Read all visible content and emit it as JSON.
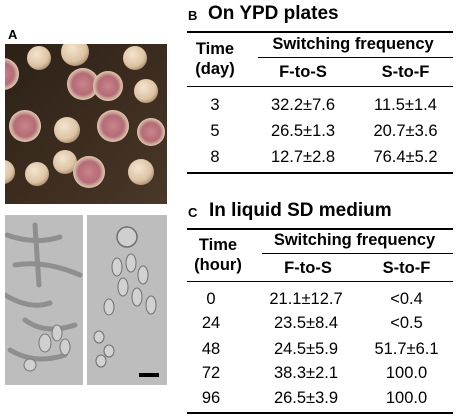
{
  "panel_a": {
    "label": "A"
  },
  "panel_b": {
    "label": "B",
    "title": "On YPD plates",
    "time_header_line1": "Time",
    "time_header_line2": "(day)",
    "group_header": "Switching frequency",
    "col1": "F-to-S",
    "col2": "S-to-F",
    "rows": [
      {
        "time": "3",
        "f_to_s": "32.2±7.6",
        "s_to_f": "11.5±1.4"
      },
      {
        "time": "5",
        "f_to_s": "26.5±1.3",
        "s_to_f": "20.7±3.6"
      },
      {
        "time": "8",
        "f_to_s": "12.7±2.8",
        "s_to_f": "76.4±5.2"
      }
    ]
  },
  "panel_c": {
    "label": "C",
    "title": "In liquid SD medium",
    "time_header_line1": "Time",
    "time_header_line2": "(hour)",
    "group_header": "Switching frequency",
    "col1": "F-to-S",
    "col2": "S-to-F",
    "rows": [
      {
        "time": "0",
        "f_to_s": "21.1±12.7",
        "s_to_f": "<0.4"
      },
      {
        "time": "24",
        "f_to_s": "23.5±8.4",
        "s_to_f": "<0.5"
      },
      {
        "time": "48",
        "f_to_s": "24.5±5.9",
        "s_to_f": "51.7±6.1"
      },
      {
        "time": "72",
        "f_to_s": "38.3±2.1",
        "s_to_f": "100.0"
      },
      {
        "time": "96",
        "f_to_s": "26.5±3.9",
        "s_to_f": "100.0"
      }
    ]
  }
}
